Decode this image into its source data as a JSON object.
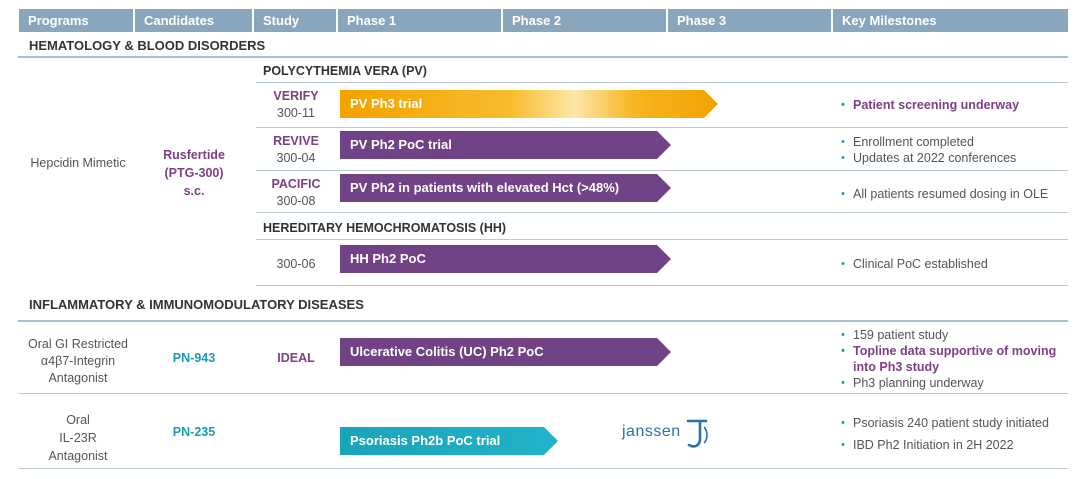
{
  "chart_data": {
    "type": "table",
    "title": "",
    "columns": [
      "Programs",
      "Candidates",
      "Study",
      "Phase 1",
      "Phase 2",
      "Phase 3",
      "Key Milestones"
    ],
    "sections": [
      {
        "name": "HEMATOLOGY & BLOOD DISORDERS",
        "program": "Hepcidin Mimetic",
        "candidate": [
          "Rusfertide",
          "(PTG-300)",
          "s.c."
        ],
        "subsections": [
          {
            "name": "POLYCYTHEMIA VERA (PV)",
            "rows": [
              {
                "study": "VERIFY",
                "code": "300-11",
                "bar": "PV Ph3 trial",
                "phase_reached": 3,
                "milestones": [
                  "Patient screening underway"
                ]
              },
              {
                "study": "REVIVE",
                "code": "300-04",
                "bar": "PV Ph2 PoC trial",
                "phase_reached": 2,
                "milestones": [
                  "Enrollment completed",
                  "Updates at 2022 conferences"
                ]
              },
              {
                "study": "PACIFIC",
                "code": "300-08",
                "bar": "PV Ph2 in patients with elevated Hct (>48%)",
                "phase_reached": 2,
                "milestones": [
                  "All patients resumed dosing in OLE"
                ]
              }
            ]
          },
          {
            "name": "HEREDITARY HEMOCHROMATOSIS (HH)",
            "rows": [
              {
                "study": "",
                "code": "300-06",
                "bar": "HH Ph2 PoC",
                "phase_reached": 2,
                "milestones": [
                  "Clinical PoC established"
                ]
              }
            ]
          }
        ]
      },
      {
        "name": "INFLAMMATORY & IMMUNOMODULATORY DISEASES",
        "rows": [
          {
            "program": [
              "Oral GI Restricted",
              "α4β7-Integrin",
              "Antagonist"
            ],
            "candidate": "PN-943",
            "study": "IDEAL",
            "bar": "Ulcerative Colitis (UC) Ph2 PoC",
            "phase_reached": 2,
            "milestones": [
              "159 patient study",
              "Topline data supportive of moving into Ph3 study",
              "Ph3 planning underway"
            ]
          },
          {
            "program": [
              "Oral",
              "IL-23R",
              "Antagonist"
            ],
            "candidate": "PN-235",
            "study": "",
            "bar": "Psoriasis Ph2b PoC trial",
            "phase_reached": 1.7,
            "partner": "janssen",
            "milestones": [
              "Psoriasis 240 patient study initiated",
              "IBD Ph2 Initiation in 2H 2022"
            ]
          }
        ]
      }
    ]
  },
  "colors": {
    "header": "#8aa6bd",
    "purple_bar": "#714286",
    "orange_bar": "#f3a200",
    "teal_bar": "#1aa4b8",
    "highlight": "#7d3f86",
    "teal_text": "#1a9db1"
  },
  "milestone_highlight": {
    "verify": [
      0
    ],
    "ideal": [
      1
    ]
  }
}
